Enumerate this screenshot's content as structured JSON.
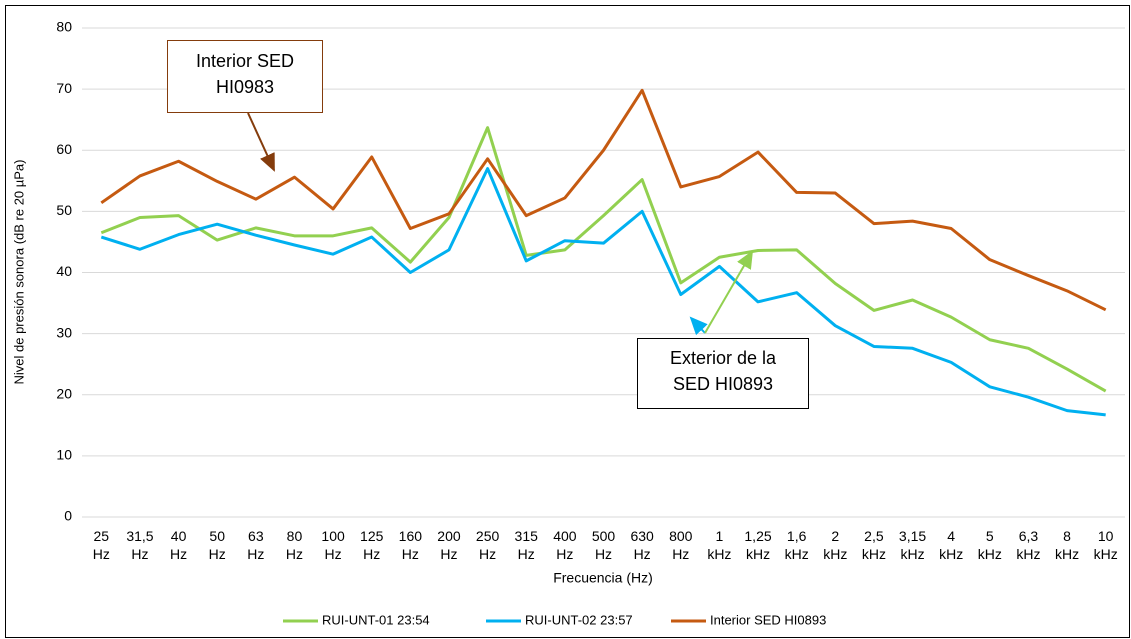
{
  "chart_data": {
    "type": "line",
    "categories": [
      "25 Hz",
      "31,5 Hz",
      "40 Hz",
      "50 Hz",
      "63 Hz",
      "80 Hz",
      "100 Hz",
      "125 Hz",
      "160 Hz",
      "200 Hz",
      "250 Hz",
      "315 Hz",
      "400 Hz",
      "500 Hz",
      "630 Hz",
      "800 Hz",
      "1 kHz",
      "1,25 kHz",
      "1,6 kHz",
      "2 kHz",
      "2,5 kHz",
      "3,15 kHz",
      "4 kHz",
      "5 kHz",
      "6,3 kHz",
      "8 kHz",
      "10 kHz"
    ],
    "series": [
      {
        "name": "RUI-UNT-01 23:54",
        "color": "#92d050",
        "values": [
          46.5,
          49,
          49.3,
          45.3,
          47.3,
          46,
          46,
          47.3,
          41.7,
          49,
          63.7,
          42.8,
          43.7,
          49.3,
          55.2,
          38.3,
          42.5,
          43.6,
          43.7,
          38.2,
          33.8,
          35.5,
          32.7,
          29,
          27.6,
          24.2,
          20.6
        ]
      },
      {
        "name": "RUI-UNT-02 23:57",
        "color": "#00b0f0",
        "values": [
          45.8,
          43.8,
          46.2,
          47.9,
          46.1,
          44.5,
          43,
          45.8,
          40,
          43.7,
          57,
          41.9,
          45.2,
          44.8,
          50,
          36.4,
          41,
          35.2,
          36.7,
          31.3,
          27.9,
          27.6,
          25.3,
          21.3,
          19.6,
          17.4,
          16.7
        ]
      },
      {
        "name": "Interior SED HI0893",
        "color": "#c55a11",
        "values": [
          51.4,
          55.8,
          58.2,
          54.9,
          52,
          55.6,
          50.4,
          58.9,
          47.2,
          49.6,
          58.6,
          49.3,
          52.2,
          60,
          69.8,
          54,
          55.7,
          59.7,
          53.1,
          53,
          48,
          48.4,
          47.2,
          42.1,
          39.5,
          37,
          33.9
        ]
      }
    ],
    "ylim": [
      0,
      80
    ],
    "yticks": [
      0,
      10,
      20,
      30,
      40,
      50,
      60,
      70,
      80
    ],
    "grid": true,
    "y_label": "Nivel de presión sonora (dB re 20 µPa)",
    "x_label": "Frecuencia (Hz)",
    "legend": "bottom",
    "annotations": [
      {
        "text": [
          "Interior SED",
          "HI0983"
        ]
      },
      {
        "text": [
          "Exterior de la",
          "SED HI0893"
        ]
      }
    ]
  }
}
